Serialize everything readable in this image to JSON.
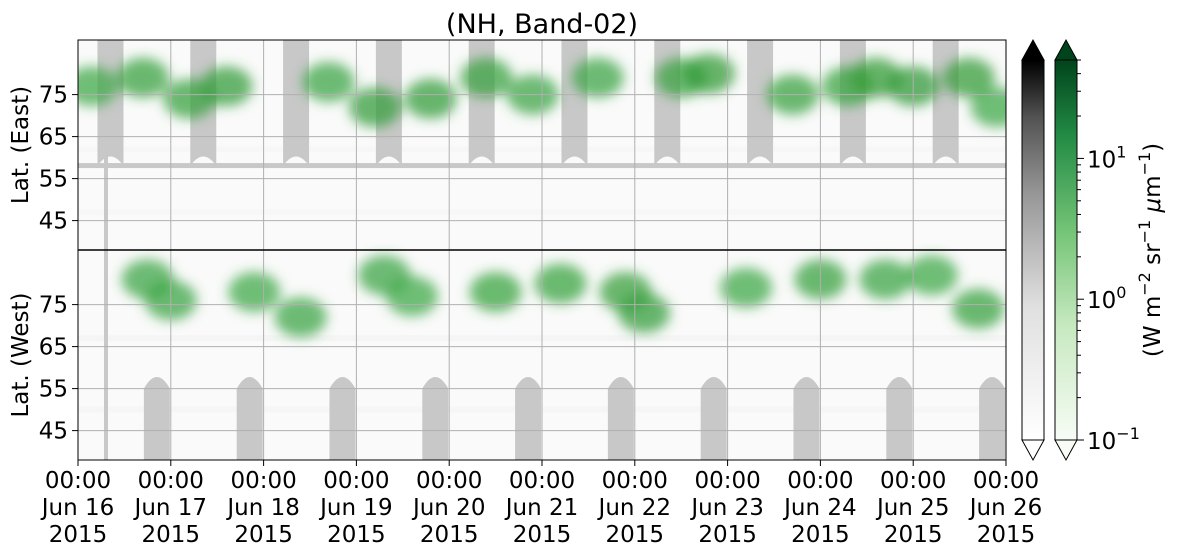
{
  "chart_data": {
    "type": "heatmap",
    "title": "(NH, Band-02)",
    "upper_panel": {
      "ylabel": "Lat. (East)",
      "yticks": [
        45,
        55,
        65,
        75
      ],
      "ylim": [
        38,
        88
      ]
    },
    "lower_panel": {
      "ylabel": "Lat. (West)",
      "yticks": [
        75,
        65,
        55,
        45
      ],
      "ylim": [
        88,
        38
      ]
    },
    "x_start": "2015-06-16 00:00",
    "x_end": "2015-06-26 00:00",
    "xticks": [
      {
        "time": "00:00",
        "date": "Jun 16",
        "year": "2015"
      },
      {
        "time": "00:00",
        "date": "Jun 17",
        "year": "2015"
      },
      {
        "time": "00:00",
        "date": "Jun 18",
        "year": "2015"
      },
      {
        "time": "00:00",
        "date": "Jun 19",
        "year": "2015"
      },
      {
        "time": "00:00",
        "date": "Jun 20",
        "year": "2015"
      },
      {
        "time": "00:00",
        "date": "Jun 21",
        "year": "2015"
      },
      {
        "time": "00:00",
        "date": "Jun 22",
        "year": "2015"
      },
      {
        "time": "00:00",
        "date": "Jun 23",
        "year": "2015"
      },
      {
        "time": "00:00",
        "date": "Jun 24",
        "year": "2015"
      },
      {
        "time": "00:00",
        "date": "Jun 25",
        "year": "2015"
      },
      {
        "time": "00:00",
        "date": "Jun 26",
        "year": "2015"
      }
    ],
    "colorbar": {
      "scale": "log",
      "range": [
        0.1,
        50
      ],
      "ticks": [
        {
          "value": 0.1,
          "base": "10",
          "exp": "−1"
        },
        {
          "value": 1,
          "base": "10",
          "exp": "0"
        },
        {
          "value": 10,
          "base": "10",
          "exp": "1"
        }
      ],
      "label_parts": [
        "(W m",
        "−2",
        " sr",
        "−1",
        " ",
        "μ",
        "m",
        "−1",
        ")"
      ],
      "colormaps": [
        "Greys",
        "Greens"
      ]
    },
    "missing_data_color": "#c8c8c8",
    "hotspots": [
      {
        "day": 0.15,
        "lat": 77,
        "side": "East",
        "value": 1.5
      },
      {
        "day": 0.7,
        "lat": 79,
        "side": "East",
        "value": 3
      },
      {
        "day": 0.75,
        "lat": 81,
        "side": "West",
        "value": 2
      },
      {
        "day": 1.0,
        "lat": 76,
        "side": "West",
        "value": 2
      },
      {
        "day": 1.2,
        "lat": 74,
        "side": "East",
        "value": 3
      },
      {
        "day": 1.6,
        "lat": 77,
        "side": "East",
        "value": 4
      },
      {
        "day": 1.9,
        "lat": 78,
        "side": "West",
        "value": 1.5
      },
      {
        "day": 2.4,
        "lat": 72,
        "side": "West",
        "value": 2
      },
      {
        "day": 2.7,
        "lat": 78,
        "side": "East",
        "value": 2
      },
      {
        "day": 3.2,
        "lat": 72,
        "side": "East",
        "value": 4
      },
      {
        "day": 3.3,
        "lat": 82,
        "side": "West",
        "value": 2
      },
      {
        "day": 3.6,
        "lat": 77,
        "side": "West",
        "value": 1.5
      },
      {
        "day": 3.8,
        "lat": 74,
        "side": "East",
        "value": 4
      },
      {
        "day": 4.4,
        "lat": 79,
        "side": "East",
        "value": 3
      },
      {
        "day": 4.5,
        "lat": 78,
        "side": "West",
        "value": 2.5
      },
      {
        "day": 4.9,
        "lat": 75,
        "side": "East",
        "value": 2
      },
      {
        "day": 5.2,
        "lat": 80,
        "side": "West",
        "value": 2.5
      },
      {
        "day": 5.6,
        "lat": 79,
        "side": "East",
        "value": 2
      },
      {
        "day": 5.9,
        "lat": 78,
        "side": "West",
        "value": 3.5
      },
      {
        "day": 6.1,
        "lat": 73,
        "side": "West",
        "value": 4
      },
      {
        "day": 6.5,
        "lat": 79,
        "side": "East",
        "value": 3
      },
      {
        "day": 6.8,
        "lat": 80,
        "side": "East",
        "value": 5
      },
      {
        "day": 7.2,
        "lat": 79,
        "side": "West",
        "value": 1.5
      },
      {
        "day": 7.7,
        "lat": 75,
        "side": "East",
        "value": 3
      },
      {
        "day": 8.0,
        "lat": 81,
        "side": "West",
        "value": 3
      },
      {
        "day": 8.3,
        "lat": 77,
        "side": "East",
        "value": 2.5
      },
      {
        "day": 8.6,
        "lat": 79,
        "side": "East",
        "value": 5
      },
      {
        "day": 8.7,
        "lat": 81,
        "side": "West",
        "value": 2
      },
      {
        "day": 9.0,
        "lat": 77,
        "side": "East",
        "value": 6
      },
      {
        "day": 9.2,
        "lat": 82,
        "side": "West",
        "value": 1.5
      },
      {
        "day": 9.6,
        "lat": 79,
        "side": "East",
        "value": 5
      },
      {
        "day": 9.7,
        "lat": 74,
        "side": "West",
        "value": 3
      },
      {
        "day": 9.9,
        "lat": 72,
        "side": "East",
        "value": 1.5
      }
    ]
  }
}
